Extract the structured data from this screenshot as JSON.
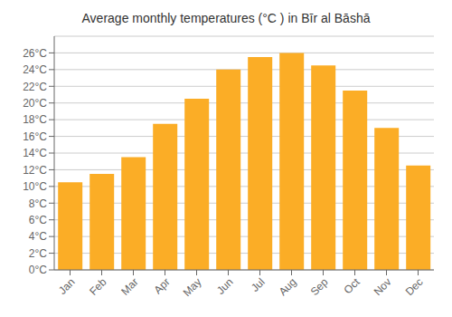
{
  "chart_data": {
    "type": "bar",
    "title": "Average monthly temperatures (°C ) in Bīr al Bāshā",
    "categories": [
      "Jan",
      "Feb",
      "Mar",
      "Apr",
      "May",
      "Jun",
      "Jul",
      "Aug",
      "Sep",
      "Oct",
      "Nov",
      "Dec"
    ],
    "values": [
      10.5,
      11.5,
      13.5,
      17.5,
      20.5,
      24.0,
      25.5,
      26.0,
      24.5,
      21.5,
      17.0,
      12.5
    ],
    "color": "#FBAD26",
    "ylim": [
      0,
      28
    ],
    "yticks": [
      {
        "value": 0,
        "label": "0°C"
      },
      {
        "value": 2,
        "label": "2°C"
      },
      {
        "value": 4,
        "label": "4°C"
      },
      {
        "value": 6,
        "label": "6°C"
      },
      {
        "value": 8,
        "label": "8°C"
      },
      {
        "value": 10,
        "label": "10°C"
      },
      {
        "value": 12,
        "label": "12°C"
      },
      {
        "value": 14,
        "label": "14°C"
      },
      {
        "value": 16,
        "label": "16°C"
      },
      {
        "value": 18,
        "label": "18°C"
      },
      {
        "value": 20,
        "label": "20°C"
      },
      {
        "value": 22,
        "label": "22°C"
      },
      {
        "value": 24,
        "label": "24°C"
      },
      {
        "value": 26,
        "label": "26°C"
      }
    ],
    "grid": true
  }
}
